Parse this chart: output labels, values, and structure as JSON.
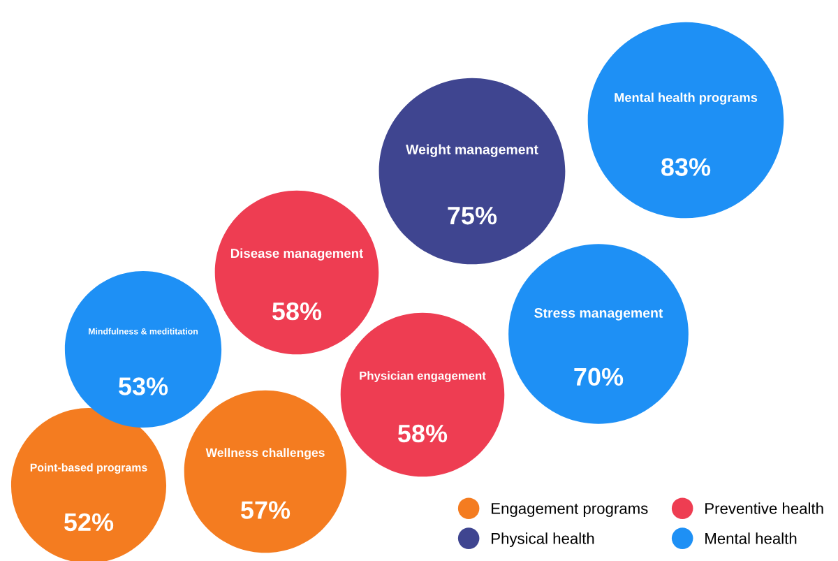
{
  "chart_data": {
    "type": "other",
    "categories": [
      "Point-based programs",
      "Wellness challenges",
      "Mindfulness & medititation",
      "Disease management",
      "Physician engagement",
      "Weight management",
      "Stress management",
      "Mental health programs"
    ],
    "series": [
      {
        "name": "Engagement programs",
        "color": "#f47c20",
        "values": [
          52,
          57,
          null,
          null,
          null,
          null,
          null,
          null
        ],
        "value_labels": [
          "52%",
          "57%",
          null,
          null,
          null,
          null,
          null,
          null
        ]
      },
      {
        "name": "Physical health",
        "color": "#3f4590",
        "values": [
          null,
          null,
          null,
          null,
          null,
          75,
          null,
          null
        ],
        "value_labels": [
          null,
          null,
          null,
          null,
          null,
          "75%",
          null,
          null
        ]
      },
      {
        "name": "Preventive health",
        "color": "#ee3d52",
        "values": [
          null,
          null,
          null,
          58,
          58,
          null,
          null,
          null
        ],
        "value_labels": [
          null,
          null,
          null,
          "58%",
          "58%",
          null,
          null,
          null
        ]
      },
      {
        "name": "Mental health",
        "color": "#1e90f5",
        "values": [
          null,
          null,
          53,
          null,
          null,
          null,
          70,
          83
        ],
        "value_labels": [
          null,
          null,
          "53%",
          null,
          null,
          null,
          "70%",
          "83%"
        ]
      }
    ],
    "legend": "bottom right"
  }
}
